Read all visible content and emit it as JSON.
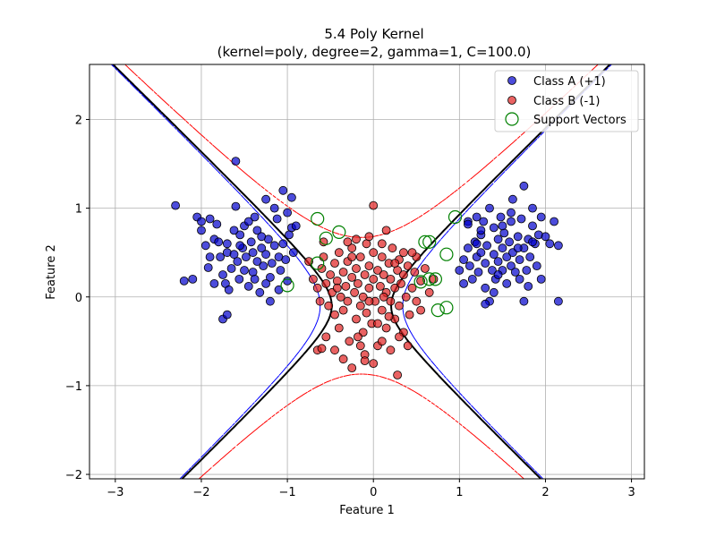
{
  "chart_data": {
    "type": "scatter",
    "title_line1": "5.4 Poly Kernel",
    "title_line2": "(kernel=poly, degree=2, gamma=1, C=100.0)",
    "xlabel": "Feature 1",
    "ylabel": "Feature 2",
    "xlim": [
      -3.3,
      3.15
    ],
    "ylim": [
      -2.05,
      2.62
    ],
    "xticks": [
      -3,
      -2,
      -1,
      0,
      1,
      2,
      3
    ],
    "yticks": [
      -2,
      -1,
      0,
      1,
      2
    ],
    "grid": true,
    "legend_position": "top-right",
    "colors": {
      "class_a": "#0000cc",
      "class_b": "#e02020",
      "support": "#008000",
      "decision": "#000000",
      "margin_pos": "#0000ff",
      "margin_neg": "#ff0000"
    },
    "legend": [
      {
        "key": "class_a",
        "label": "Class A (+1)"
      },
      {
        "key": "class_b",
        "label": "Class B (-1)"
      },
      {
        "key": "support",
        "label": "Support Vectors"
      }
    ],
    "series": [
      {
        "name": "Class A (+1)",
        "points": [
          [
            -2.3,
            1.03
          ],
          [
            -2.2,
            0.18
          ],
          [
            -2.1,
            0.2
          ],
          [
            -2.05,
            0.9
          ],
          [
            -2.0,
            0.85
          ],
          [
            -2.0,
            0.75
          ],
          [
            -1.95,
            0.58
          ],
          [
            -1.92,
            0.33
          ],
          [
            -1.9,
            0.45
          ],
          [
            -1.85,
            0.65
          ],
          [
            -1.82,
            0.82
          ],
          [
            -1.8,
            0.62
          ],
          [
            -1.78,
            0.45
          ],
          [
            -1.75,
            0.25
          ],
          [
            -1.72,
            0.15
          ],
          [
            -1.7,
            0.5
          ],
          [
            -1.7,
            0.6
          ],
          [
            -1.68,
            0.08
          ],
          [
            -1.65,
            0.32
          ],
          [
            -1.62,
            0.48
          ],
          [
            -1.6,
            1.53
          ],
          [
            -1.58,
            0.4
          ],
          [
            -1.56,
            0.2
          ],
          [
            -1.55,
            0.7
          ],
          [
            -1.52,
            0.55
          ],
          [
            -1.5,
            0.8
          ],
          [
            -1.5,
            0.3
          ],
          [
            -1.48,
            0.45
          ],
          [
            -1.45,
            0.12
          ],
          [
            -1.42,
            0.62
          ],
          [
            -1.4,
            0.5
          ],
          [
            -1.4,
            0.28
          ],
          [
            -1.38,
            0.9
          ],
          [
            -1.35,
            0.75
          ],
          [
            -1.35,
            0.4
          ],
          [
            -1.32,
            0.05
          ],
          [
            -1.3,
            0.55
          ],
          [
            -1.28,
            0.35
          ],
          [
            -1.25,
            0.48
          ],
          [
            -1.25,
            1.1
          ],
          [
            -1.22,
            0.65
          ],
          [
            -1.2,
            0.22
          ],
          [
            -1.18,
            0.38
          ],
          [
            -1.15,
            0.58
          ],
          [
            -1.15,
            1.0
          ],
          [
            -1.12,
            0.88
          ],
          [
            -1.1,
            0.45
          ],
          [
            -1.1,
            0.08
          ],
          [
            -1.08,
            0.3
          ],
          [
            -1.05,
            1.2
          ],
          [
            -1.05,
            0.6
          ],
          [
            -1.02,
            0.42
          ],
          [
            -1.0,
            0.95
          ],
          [
            -1.0,
            0.18
          ],
          [
            -0.98,
            0.7
          ],
          [
            -0.95,
            1.12
          ],
          [
            -0.95,
            0.78
          ],
          [
            -0.93,
            0.5
          ],
          [
            -0.9,
            0.8
          ],
          [
            -1.6,
            1.02
          ],
          [
            -1.75,
            -0.25
          ],
          [
            -1.7,
            -0.2
          ],
          [
            -1.2,
            -0.05
          ],
          [
            -1.85,
            0.15
          ],
          [
            -1.45,
            0.85
          ],
          [
            -1.3,
            0.68
          ],
          [
            -1.55,
            0.58
          ],
          [
            -1.62,
            0.75
          ],
          [
            -1.38,
            0.2
          ],
          [
            -1.9,
            0.88
          ],
          [
            -1.25,
            0.15
          ],
          [
            1.0,
            0.3
          ],
          [
            1.05,
            0.42
          ],
          [
            1.05,
            0.15
          ],
          [
            1.1,
            0.55
          ],
          [
            1.1,
            0.85
          ],
          [
            1.12,
            0.35
          ],
          [
            1.15,
            0.2
          ],
          [
            1.18,
            0.62
          ],
          [
            1.2,
            0.45
          ],
          [
            1.2,
            0.9
          ],
          [
            1.22,
            0.28
          ],
          [
            1.25,
            0.7
          ],
          [
            1.25,
            0.5
          ],
          [
            1.28,
            0.85
          ],
          [
            1.3,
            0.38
          ],
          [
            1.3,
            0.1
          ],
          [
            1.32,
            0.58
          ],
          [
            1.35,
            1.0
          ],
          [
            1.35,
            -0.05
          ],
          [
            1.38,
            0.3
          ],
          [
            1.4,
            0.48
          ],
          [
            1.4,
            0.78
          ],
          [
            1.42,
            0.2
          ],
          [
            1.45,
            0.65
          ],
          [
            1.45,
            0.4
          ],
          [
            1.48,
            0.9
          ],
          [
            1.5,
            0.55
          ],
          [
            1.5,
            0.3
          ],
          [
            1.52,
            0.72
          ],
          [
            1.55,
            0.45
          ],
          [
            1.55,
            0.15
          ],
          [
            1.58,
            0.62
          ],
          [
            1.6,
            0.35
          ],
          [
            1.6,
            0.85
          ],
          [
            1.62,
            1.1
          ],
          [
            1.62,
            0.5
          ],
          [
            1.65,
            0.28
          ],
          [
            1.68,
            0.68
          ],
          [
            1.7,
            0.42
          ],
          [
            1.7,
            0.2
          ],
          [
            1.72,
            0.88
          ],
          [
            1.75,
            0.55
          ],
          [
            1.75,
            1.25
          ],
          [
            1.78,
            0.3
          ],
          [
            1.8,
            0.65
          ],
          [
            1.8,
            0.12
          ],
          [
            1.82,
            0.45
          ],
          [
            1.85,
            0.8
          ],
          [
            1.85,
            1.0
          ],
          [
            1.88,
            0.6
          ],
          [
            1.9,
            0.35
          ],
          [
            1.92,
            0.7
          ],
          [
            1.95,
            0.2
          ],
          [
            1.95,
            0.9
          ],
          [
            2.0,
            0.68
          ],
          [
            2.05,
            0.6
          ],
          [
            2.1,
            0.85
          ],
          [
            2.15,
            -0.05
          ],
          [
            2.15,
            0.58
          ],
          [
            1.3,
            -0.08
          ],
          [
            1.4,
            0.05
          ],
          [
            1.75,
            -0.05
          ],
          [
            1.1,
            0.82
          ],
          [
            1.6,
            0.95
          ],
          [
            1.45,
            0.25
          ],
          [
            1.2,
            0.6
          ],
          [
            1.68,
            0.55
          ],
          [
            1.85,
            0.62
          ],
          [
            1.25,
            0.75
          ],
          [
            1.5,
            0.8
          ]
        ]
      },
      {
        "name": "Class B (-1)",
        "points": [
          [
            -0.75,
            0.4
          ],
          [
            -0.7,
            0.2
          ],
          [
            -0.65,
            0.1
          ],
          [
            -0.62,
            -0.05
          ],
          [
            -0.6,
            0.32
          ],
          [
            -0.58,
            0.45
          ],
          [
            -0.55,
            0.15
          ],
          [
            -0.52,
            -0.1
          ],
          [
            -0.5,
            0.25
          ],
          [
            -0.48,
            0.05
          ],
          [
            -0.45,
            -0.2
          ],
          [
            -0.45,
            0.38
          ],
          [
            -0.42,
            0.18
          ],
          [
            -0.4,
            -0.35
          ],
          [
            -0.4,
            0.5
          ],
          [
            -0.38,
            0.0
          ],
          [
            -0.35,
            0.28
          ],
          [
            -0.35,
            -0.15
          ],
          [
            -0.32,
            0.12
          ],
          [
            -0.3,
            0.4
          ],
          [
            -0.3,
            -0.05
          ],
          [
            -0.28,
            -0.5
          ],
          [
            -0.25,
            0.22
          ],
          [
            -0.25,
            0.55
          ],
          [
            -0.22,
            0.05
          ],
          [
            -0.2,
            -0.25
          ],
          [
            -0.2,
            0.32
          ],
          [
            -0.18,
            0.15
          ],
          [
            -0.15,
            -0.1
          ],
          [
            -0.15,
            0.45
          ],
          [
            -0.12,
            0.0
          ],
          [
            -0.12,
            -0.4
          ],
          [
            -0.1,
            0.25
          ],
          [
            -0.08,
            0.6
          ],
          [
            -0.08,
            -0.18
          ],
          [
            -0.05,
            0.1
          ],
          [
            -0.05,
            0.35
          ],
          [
            -0.02,
            -0.3
          ],
          [
            0.0,
            0.2
          ],
          [
            0.0,
            0.5
          ],
          [
            0.02,
            -0.05
          ],
          [
            0.05,
            0.3
          ],
          [
            0.05,
            -0.55
          ],
          [
            0.08,
            0.12
          ],
          [
            0.1,
            0.45
          ],
          [
            0.1,
            -0.15
          ],
          [
            0.12,
            0.25
          ],
          [
            0.15,
            -0.35
          ],
          [
            0.15,
            0.05
          ],
          [
            0.18,
            0.38
          ],
          [
            0.2,
            -0.05
          ],
          [
            0.2,
            0.2
          ],
          [
            0.22,
            0.55
          ],
          [
            0.25,
            -0.25
          ],
          [
            0.25,
            0.1
          ],
          [
            0.28,
            0.3
          ],
          [
            0.3,
            -0.1
          ],
          [
            0.3,
            0.42
          ],
          [
            0.32,
            0.15
          ],
          [
            0.35,
            -0.4
          ],
          [
            0.35,
            0.25
          ],
          [
            0.38,
            0.0
          ],
          [
            0.4,
            0.35
          ],
          [
            0.42,
            -0.2
          ],
          [
            0.45,
            0.1
          ],
          [
            0.48,
            0.28
          ],
          [
            0.5,
            -0.05
          ],
          [
            0.5,
            0.45
          ],
          [
            0.55,
            0.18
          ],
          [
            0.6,
            0.32
          ],
          [
            0.65,
            0.05
          ],
          [
            0.7,
            0.2
          ],
          [
            -0.65,
            -0.6
          ],
          [
            -0.55,
            -0.45
          ],
          [
            -0.45,
            -0.6
          ],
          [
            -0.35,
            -0.7
          ],
          [
            -0.25,
            -0.8
          ],
          [
            -0.15,
            -0.55
          ],
          [
            -0.1,
            -0.65
          ],
          [
            0.0,
            -0.75
          ],
          [
            0.1,
            -0.5
          ],
          [
            0.2,
            -0.6
          ],
          [
            0.3,
            -0.45
          ],
          [
            0.4,
            -0.55
          ],
          [
            0.28,
            -0.88
          ],
          [
            -0.1,
            -0.72
          ],
          [
            -0.2,
            0.65
          ],
          [
            -0.05,
            0.68
          ],
          [
            0.1,
            0.6
          ],
          [
            0.0,
            1.03
          ],
          [
            -0.6,
            -0.58
          ],
          [
            -0.58,
            0.62
          ],
          [
            0.15,
            0.75
          ],
          [
            -0.3,
            0.62
          ],
          [
            0.45,
            0.5
          ],
          [
            0.55,
            -0.15
          ],
          [
            -0.42,
            0.1
          ],
          [
            0.35,
            0.5
          ],
          [
            -0.18,
            -0.45
          ],
          [
            0.05,
            -0.3
          ],
          [
            0.25,
            0.38
          ],
          [
            -0.25,
            0.45
          ],
          [
            0.12,
            0.0
          ],
          [
            -0.05,
            -0.05
          ],
          [
            0.18,
            -0.22
          ]
        ]
      },
      {
        "name": "Support Vectors",
        "points": [
          [
            -0.65,
            0.88
          ],
          [
            -0.55,
            0.66
          ],
          [
            -0.4,
            0.73
          ],
          [
            -0.65,
            0.38
          ],
          [
            -1.0,
            0.13
          ],
          [
            0.6,
            0.62
          ],
          [
            0.65,
            0.62
          ],
          [
            0.55,
            0.17
          ],
          [
            0.65,
            0.2
          ],
          [
            0.72,
            0.2
          ],
          [
            0.95,
            0.9
          ],
          [
            0.85,
            0.48
          ],
          [
            0.85,
            -0.12
          ],
          [
            0.75,
            -0.15
          ]
        ]
      }
    ]
  }
}
